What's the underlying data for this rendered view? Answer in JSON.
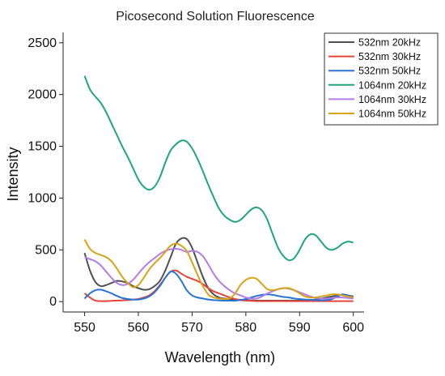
{
  "chart_data": {
    "type": "line",
    "title": "Picosecond Solution Fluorescence",
    "xlabel": "Wavelength (nm)",
    "ylabel": "Intensity",
    "xlim": [
      546,
      602
    ],
    "ylim": [
      -100,
      2600
    ],
    "xticks": [
      "550",
      "560",
      "570",
      "580",
      "590",
      "600"
    ],
    "yticks": [
      "0",
      "500",
      "1000",
      "1500",
      "2000",
      "2500"
    ],
    "grid": false,
    "legend_position": "top-right",
    "series": [
      {
        "name": "532nm 20kHz",
        "color": "#505050",
        "x": [
          550,
          551,
          552,
          553,
          554,
          555,
          556,
          557,
          558,
          559,
          560,
          561,
          562,
          563,
          564,
          565,
          566,
          567,
          568,
          569,
          570,
          571,
          572,
          573,
          574,
          575,
          576,
          577,
          578,
          579,
          580,
          581,
          582,
          583,
          584,
          585,
          586,
          587,
          588,
          589,
          590,
          591,
          592,
          593,
          594,
          595,
          596,
          597,
          598,
          599,
          600
        ],
        "y": [
          470,
          300,
          190,
          150,
          160,
          180,
          200,
          195,
          180,
          150,
          130,
          115,
          120,
          150,
          200,
          300,
          430,
          560,
          610,
          605,
          520,
          380,
          240,
          130,
          70,
          40,
          30,
          25,
          20,
          18,
          15,
          12,
          10,
          10,
          10,
          10,
          10,
          10,
          10,
          10,
          10,
          10,
          15,
          20,
          30,
          40,
          50,
          60,
          65,
          60,
          50
        ]
      },
      {
        "name": "532nm 30kHz",
        "color": "#e8443a",
        "x": [
          550,
          551,
          552,
          553,
          554,
          555,
          556,
          557,
          558,
          559,
          560,
          561,
          562,
          563,
          564,
          565,
          566,
          567,
          568,
          569,
          570,
          571,
          572,
          573,
          574,
          575,
          576,
          577,
          578,
          579,
          580,
          581,
          582,
          583,
          584,
          585,
          586,
          587,
          588,
          589,
          590,
          591,
          592,
          593,
          594,
          595,
          596,
          597,
          598,
          599,
          600
        ],
        "y": [
          80,
          40,
          10,
          5,
          5,
          8,
          10,
          12,
          15,
          20,
          25,
          40,
          60,
          100,
          160,
          230,
          290,
          300,
          270,
          240,
          220,
          200,
          170,
          130,
          100,
          80,
          60,
          40,
          25,
          15,
          10,
          8,
          5,
          5,
          5,
          5,
          5,
          5,
          5,
          5,
          5,
          5,
          5,
          5,
          5,
          5,
          5,
          5,
          5,
          5,
          5
        ]
      },
      {
        "name": "532nm 50kHz",
        "color": "#2574d6",
        "x": [
          550,
          551,
          552,
          553,
          554,
          555,
          556,
          557,
          558,
          559,
          560,
          561,
          562,
          563,
          564,
          565,
          566,
          567,
          568,
          569,
          570,
          571,
          572,
          573,
          574,
          575,
          576,
          577,
          578,
          579,
          580,
          581,
          582,
          583,
          584,
          585,
          586,
          587,
          588,
          589,
          590,
          591,
          592,
          593,
          594,
          595,
          596,
          597,
          598,
          599,
          600
        ],
        "y": [
          30,
          80,
          110,
          115,
          100,
          80,
          55,
          35,
          25,
          20,
          20,
          30,
          50,
          90,
          150,
          230,
          290,
          270,
          200,
          110,
          60,
          40,
          30,
          20,
          15,
          12,
          10,
          10,
          10,
          15,
          25,
          40,
          55,
          65,
          70,
          65,
          55,
          45,
          40,
          30,
          25,
          20,
          18,
          15,
          12,
          15,
          25,
          50,
          70,
          60,
          40
        ]
      },
      {
        "name": "1064nm 20kHz",
        "color": "#1fa67a",
        "x": [
          550,
          551,
          552,
          553,
          554,
          555,
          556,
          557,
          558,
          559,
          560,
          561,
          562,
          563,
          564,
          565,
          566,
          567,
          568,
          569,
          570,
          571,
          572,
          573,
          574,
          575,
          576,
          577,
          578,
          579,
          580,
          581,
          582,
          583,
          584,
          585,
          586,
          587,
          588,
          589,
          590,
          591,
          592,
          593,
          594,
          595,
          596,
          597,
          598,
          599,
          600
        ],
        "y": [
          2180,
          2050,
          1980,
          1920,
          1830,
          1720,
          1610,
          1500,
          1400,
          1290,
          1180,
          1110,
          1080,
          1110,
          1200,
          1340,
          1460,
          1520,
          1555,
          1545,
          1480,
          1380,
          1260,
          1130,
          1010,
          900,
          830,
          790,
          770,
          790,
          840,
          890,
          910,
          880,
          790,
          650,
          520,
          440,
          400,
          420,
          500,
          600,
          650,
          640,
          580,
          520,
          500,
          520,
          560,
          580,
          570
        ]
      },
      {
        "name": "1064nm 30kHz",
        "color": "#b57ce8",
        "x": [
          550,
          551,
          552,
          553,
          554,
          555,
          556,
          557,
          558,
          559,
          560,
          561,
          562,
          563,
          564,
          565,
          566,
          567,
          568,
          569,
          570,
          571,
          572,
          573,
          574,
          575,
          576,
          577,
          578,
          579,
          580,
          581,
          582,
          583,
          584,
          585,
          586,
          587,
          588,
          589,
          590,
          591,
          592,
          593,
          594,
          595,
          596,
          597,
          598,
          599,
          600
        ],
        "y": [
          430,
          410,
          390,
          350,
          290,
          230,
          180,
          160,
          170,
          210,
          270,
          330,
          380,
          420,
          460,
          490,
          505,
          510,
          500,
          480,
          490,
          480,
          440,
          360,
          270,
          200,
          150,
          110,
          80,
          60,
          40,
          30,
          30,
          50,
          80,
          100,
          120,
          130,
          125,
          110,
          90,
          70,
          50,
          35,
          30,
          30,
          35,
          40,
          40,
          35,
          30
        ]
      },
      {
        "name": "1064nm 50kHz",
        "color": "#d9a316",
        "x": [
          550,
          551,
          552,
          553,
          554,
          555,
          556,
          557,
          558,
          559,
          560,
          561,
          562,
          563,
          564,
          565,
          566,
          567,
          568,
          569,
          570,
          571,
          572,
          573,
          574,
          575,
          576,
          577,
          578,
          579,
          580,
          581,
          582,
          583,
          584,
          585,
          586,
          587,
          588,
          589,
          590,
          591,
          592,
          593,
          594,
          595,
          596,
          597,
          598,
          599,
          600
        ],
        "y": [
          600,
          510,
          470,
          450,
          430,
          390,
          320,
          240,
          180,
          140,
          160,
          230,
          310,
          370,
          420,
          480,
          540,
          560,
          540,
          490,
          380,
          260,
          150,
          70,
          40,
          30,
          25,
          30,
          80,
          160,
          210,
          230,
          220,
          170,
          120,
          110,
          120,
          130,
          130,
          110,
          80,
          50,
          40,
          40,
          50,
          60,
          70,
          70,
          60,
          50,
          40
        ]
      }
    ]
  }
}
